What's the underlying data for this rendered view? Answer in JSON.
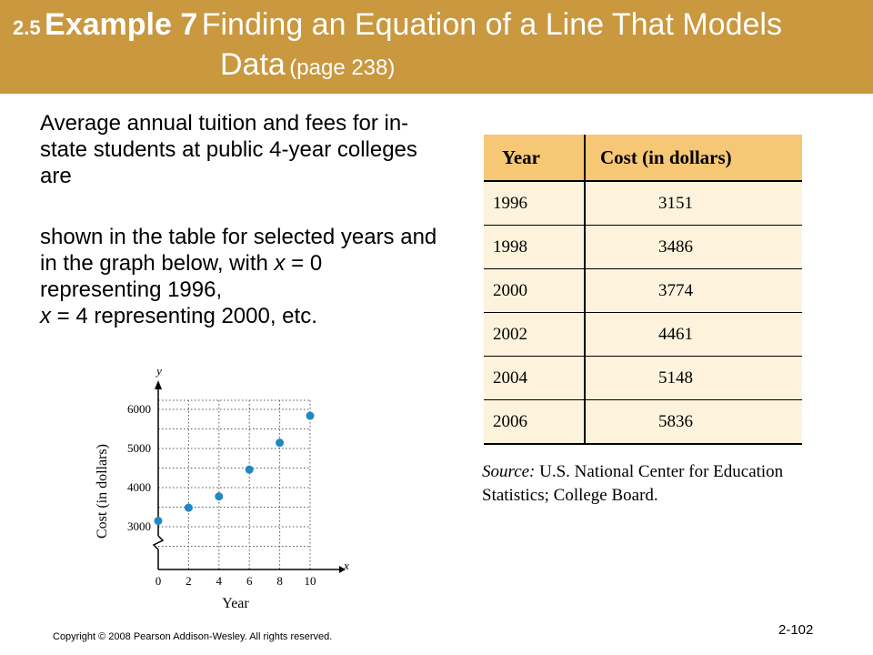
{
  "header": {
    "section": "2.5",
    "example": "Example 7",
    "title_line1": "Finding an Equation of a Line That Models",
    "title_line2": "Data",
    "page_ref": "(page 238)"
  },
  "body": {
    "para1": "Average annual tuition and fees for in-state students at public 4-year colleges are",
    "para2_pre": "shown in the table for selected years and in the graph below, with ",
    "para2_var1": "x",
    "para2_mid": " = 0 representing 1996,",
    "para2_var2": "x",
    "para2_post": " = 4 representing 2000, etc."
  },
  "table": {
    "headers": [
      "Year",
      "Cost (in dollars)"
    ],
    "rows": [
      [
        "1996",
        "3151"
      ],
      [
        "1998",
        "3486"
      ],
      [
        "2000",
        "3774"
      ],
      [
        "2002",
        "4461"
      ],
      [
        "2004",
        "5148"
      ],
      [
        "2006",
        "5836"
      ]
    ],
    "source_label": "Source:",
    "source_text": "U.S. National Center for Education Statistics; College Board."
  },
  "chart_data": {
    "type": "scatter",
    "x": [
      0,
      2,
      4,
      6,
      8,
      10
    ],
    "y": [
      3151,
      3486,
      3774,
      4461,
      5148,
      5836
    ],
    "xlabel": "Year",
    "ylabel": "Cost (in dollars)",
    "x_axis_var": "x",
    "y_axis_var": "y",
    "x_ticks": [
      "0",
      "2",
      "4",
      "6",
      "8",
      "10"
    ],
    "y_ticks": [
      "3000",
      "4000",
      "5000",
      "6000"
    ],
    "xlim": [
      0,
      10
    ],
    "ylim": [
      3000,
      6000
    ],
    "grid": true,
    "axis_break": "y",
    "point_color": "#1f88c4"
  },
  "footer": {
    "copyright": "Copyright © 2008 Pearson Addison-Wesley.  All rights reserved.",
    "page_number": "2-102"
  }
}
